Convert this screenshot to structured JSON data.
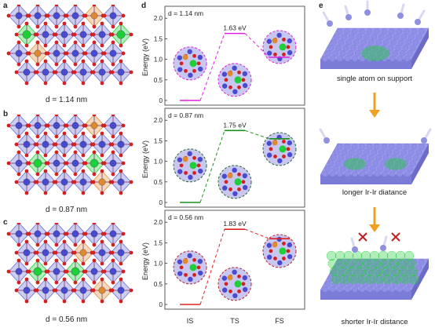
{
  "panels": {
    "a": {
      "letter": "a",
      "distance": "d = 1.14 nm"
    },
    "b": {
      "letter": "b",
      "distance": "d = 0.87 nm"
    },
    "c": {
      "letter": "c",
      "distance": "d = 0.56 nm"
    },
    "d": {
      "letter": "d"
    },
    "e": {
      "letter": "e"
    }
  },
  "chart_data": [
    {
      "type": "line",
      "annotation": "d = 1.14 nm",
      "categories": [
        "IS",
        "TS",
        "FS"
      ],
      "values": [
        0,
        1.63,
        1.05
      ],
      "ts_label": "1.63 eV",
      "ylabel": "Energy (eV)",
      "yticks": [
        "0",
        "0.5",
        "1.0",
        "1.5",
        "2.0"
      ],
      "ylim": [
        0,
        2.1
      ],
      "color": "#e020e0"
    },
    {
      "type": "line",
      "annotation": "d = 0.87 nm",
      "categories": [
        "IS",
        "TS",
        "FS"
      ],
      "values": [
        0,
        1.75,
        1.55
      ],
      "ts_label": "1.75 eV",
      "ylabel": "Energy (eV)",
      "yticks": [
        "0",
        "0.5",
        "1.0",
        "1.5",
        "2.0"
      ],
      "ylim": [
        0,
        2.1
      ],
      "color": "#1a8f1a"
    },
    {
      "type": "line",
      "annotation": "d = 0.56 nm",
      "categories": [
        "IS",
        "TS",
        "FS"
      ],
      "values": [
        0,
        1.83,
        1.6
      ],
      "ts_label": "1.83 eV",
      "ylabel": "Energy (eV)",
      "yticks": [
        "0",
        "0.5",
        "1.0",
        "1.5",
        "2.0"
      ],
      "ylim": [
        0,
        2.1
      ],
      "color": "#e02020"
    }
  ],
  "x_axis_labels": [
    "IS",
    "TS",
    "FS"
  ],
  "schematic": {
    "step1": "single atom on support",
    "step2": "longer Ir-Ir diatance",
    "step3": "shorter Ir-Ir distance"
  },
  "colors": {
    "octahedra": "#6a6fd6",
    "oxygen": "#d42020",
    "ir_dopant": "#1fcf3a",
    "surface_atom": "#8f8fe8",
    "arrow": "#f0a020"
  }
}
